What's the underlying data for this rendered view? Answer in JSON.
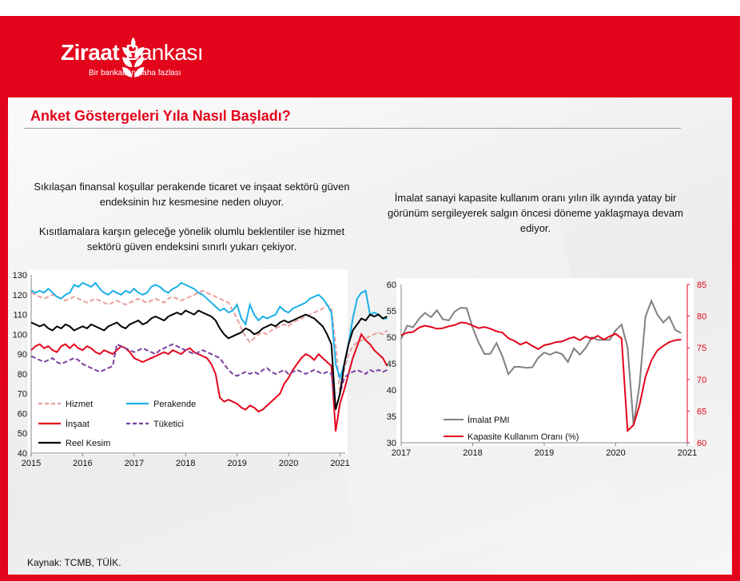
{
  "brand": {
    "name_bold": "Ziraat",
    "name_regular": "Bankası",
    "tagline": "Bir bankadan daha fazlası",
    "color": "#e3051b"
  },
  "page_title": "Anket Göstergeleri Yıla Nasıl Başladı?",
  "notes": {
    "left_1": "Sıkılaşan finansal koşullar perakende ticaret ve inşaat sektörü güven endeksinin hız kesmesine neden oluyor.",
    "left_2": "Kısıtlamalara karşın geleceğe yönelik olumlu beklentiler ise hizmet sektörü güven endeksini sınırlı yukarı çekiyor.",
    "right": "İmalat sanayi kapasite kullanım oranı yılın ilk ayında yatay bir görünüm sergileyerek salgın öncesi döneme yaklaşmaya devam ediyor."
  },
  "source": "Kaynak: TCMB, TÜİK.",
  "chart_data": [
    {
      "type": "line",
      "x_ticks": [
        "2015",
        "2016",
        "2017",
        "2018",
        "2019",
        "2020",
        "2021"
      ],
      "x_range": [
        2015,
        2021.1
      ],
      "ylim": [
        40,
        130
      ],
      "y_ticks": [
        40,
        50,
        60,
        70,
        80,
        90,
        100,
        110,
        120,
        130
      ],
      "legend_placement": "bottom-left",
      "series": [
        {
          "name": "Hizmet",
          "color": "#e8a0a0",
          "dash": "dashed",
          "x_start": 2015.0,
          "step": 0.0833,
          "values": [
            121,
            120,
            119,
            118,
            119,
            120,
            119,
            118,
            117,
            118,
            119,
            118,
            117,
            116,
            117,
            118,
            117,
            116,
            115,
            116,
            117,
            116,
            115,
            116,
            117,
            118,
            117,
            116,
            117,
            118,
            117,
            116,
            118,
            119,
            118,
            117,
            118,
            119,
            120,
            121,
            122,
            121,
            120,
            119,
            118,
            117,
            116,
            112,
            108,
            103,
            99,
            96,
            98,
            100,
            101,
            100,
            102,
            103,
            104,
            105,
            104,
            106,
            107,
            108,
            109,
            110,
            111,
            112,
            113,
            115,
            113,
            95,
            70,
            82,
            90,
            94,
            96,
            97,
            98,
            99,
            100,
            101,
            100,
            102
          ]
        },
        {
          "name": "Perakende",
          "color": "#1ab0e8",
          "dash": "solid",
          "x_start": 2015.0,
          "step": 0.0833,
          "values": [
            122,
            121,
            122,
            121,
            123,
            121,
            119,
            118,
            120,
            121,
            125,
            124,
            126,
            125,
            124,
            126,
            123,
            121,
            120,
            122,
            121,
            120,
            122,
            121,
            123,
            121,
            120,
            121,
            124,
            125,
            124,
            122,
            121,
            123,
            124,
            126,
            125,
            124,
            123,
            121,
            120,
            118,
            116,
            114,
            112,
            113,
            111,
            112,
            115,
            108,
            105,
            115,
            110,
            107,
            109,
            108,
            109,
            110,
            114,
            112,
            111,
            113,
            114,
            115,
            116,
            118,
            119,
            120,
            118,
            115,
            111,
            85,
            78,
            85,
            95,
            108,
            118,
            121,
            122,
            110,
            111,
            110,
            108,
            108
          ]
        },
        {
          "name": "İnşaat",
          "color": "#e3051b",
          "dash": "solid",
          "x_start": 2015.0,
          "step": 0.0833,
          "values": [
            92,
            94,
            95,
            93,
            94,
            92,
            91,
            94,
            95,
            93,
            95,
            93,
            92,
            94,
            93,
            91,
            90,
            92,
            91,
            90,
            92,
            94,
            93,
            91,
            88,
            87,
            86,
            87,
            88,
            89,
            90,
            91,
            90,
            92,
            91,
            90,
            92,
            93,
            91,
            90,
            89,
            88,
            85,
            80,
            68,
            66,
            67,
            66,
            65,
            63,
            62,
            64,
            63,
            61,
            62,
            64,
            66,
            68,
            70,
            75,
            78,
            82,
            85,
            88,
            90,
            89,
            87,
            90,
            88,
            86,
            84,
            51,
            65,
            72,
            80,
            88,
            94,
            100,
            97,
            95,
            92,
            90,
            88,
            84
          ]
        },
        {
          "name": "Tüketici",
          "color": "#7b3fa0",
          "dash": "dashed",
          "x_start": 2015.0,
          "step": 0.0833,
          "values": [
            89,
            88,
            87,
            86,
            87,
            88,
            86,
            85,
            86,
            87,
            88,
            87,
            85,
            84,
            83,
            82,
            81,
            82,
            83,
            84,
            95,
            94,
            93,
            92,
            91,
            92,
            93,
            92,
            91,
            90,
            92,
            93,
            94,
            95,
            94,
            93,
            92,
            91,
            90,
            91,
            92,
            91,
            90,
            89,
            88,
            85,
            82,
            80,
            79,
            80,
            81,
            80,
            81,
            80,
            82,
            83,
            81,
            80,
            81,
            82,
            80,
            81,
            82,
            81,
            80,
            81,
            82,
            81,
            80,
            81,
            80,
            62,
            70,
            78,
            80,
            81,
            82,
            81,
            80,
            82,
            81,
            82,
            81,
            82
          ]
        },
        {
          "name": "Reel Kesim",
          "color": "#000000",
          "dash": "solid",
          "x_start": 2015.0,
          "step": 0.0833,
          "values": [
            106,
            105,
            104,
            105,
            103,
            102,
            104,
            103,
            105,
            104,
            102,
            103,
            104,
            103,
            105,
            104,
            103,
            102,
            104,
            105,
            106,
            104,
            103,
            105,
            106,
            107,
            105,
            106,
            108,
            109,
            108,
            107,
            109,
            110,
            111,
            110,
            112,
            111,
            110,
            112,
            111,
            110,
            109,
            107,
            103,
            100,
            98,
            99,
            100,
            101,
            103,
            102,
            100,
            101,
            103,
            104,
            105,
            104,
            106,
            107,
            106,
            107,
            108,
            109,
            110,
            109,
            108,
            106,
            104,
            100,
            95,
            62,
            70,
            85,
            95,
            102,
            105,
            108,
            107,
            110,
            109,
            110,
            108,
            109
          ]
        }
      ]
    },
    {
      "type": "line",
      "x_ticks": [
        "2017",
        "2018",
        "2019",
        "2020",
        "2021"
      ],
      "x_range": [
        2017,
        2021
      ],
      "ylim_left": [
        30,
        60
      ],
      "y_ticks_left": [
        30,
        35,
        40,
        45,
        50,
        55,
        60
      ],
      "ylim_right": [
        60,
        85
      ],
      "y_ticks_right": [
        60,
        65,
        70,
        75,
        80,
        85
      ],
      "legend_placement": "bottom-left",
      "series": [
        {
          "name": "İmalat PMI",
          "color": "#808080",
          "axis": "left",
          "x_start": 2017.0,
          "step": 0.0833,
          "values": [
            49.7,
            52.2,
            51.9,
            53.5,
            54.6,
            53.8,
            55.1,
            53.4,
            53.2,
            54.9,
            55.6,
            55.5,
            51.8,
            49.0,
            46.8,
            46.9,
            48.9,
            46.4,
            43.0,
            44.4,
            44.4,
            44.2,
            44.3,
            46.1,
            47.1,
            46.7,
            47.2,
            46.8,
            45.3,
            47.9,
            46.7,
            48.0,
            50.0,
            49.5,
            49.5,
            49.5,
            51.3,
            52.4,
            48.1,
            33.4,
            40.9,
            53.9,
            56.9,
            54.3,
            52.8,
            53.9,
            51.4,
            50.8
          ]
        },
        {
          "name": "Kapasite Kullanım Oranı (%)",
          "color": "#e3051b",
          "axis": "right",
          "x_start": 2017.0,
          "step": 0.0833,
          "values": [
            77.0,
            77.4,
            77.5,
            78.2,
            78.5,
            78.3,
            78.0,
            78.1,
            78.4,
            78.6,
            79.0,
            78.9,
            78.5,
            78.1,
            78.3,
            78.0,
            77.6,
            77.4,
            76.5,
            76.1,
            75.5,
            75.9,
            75.3,
            74.8,
            75.4,
            75.6,
            75.9,
            76.0,
            76.4,
            76.7,
            76.2,
            76.8,
            76.4,
            76.9,
            76.3,
            76.8,
            77.2,
            76.5,
            61.9,
            62.8,
            65.9,
            70.4,
            73.0,
            74.6,
            75.3,
            75.9,
            76.2,
            76.3
          ]
        }
      ]
    }
  ]
}
